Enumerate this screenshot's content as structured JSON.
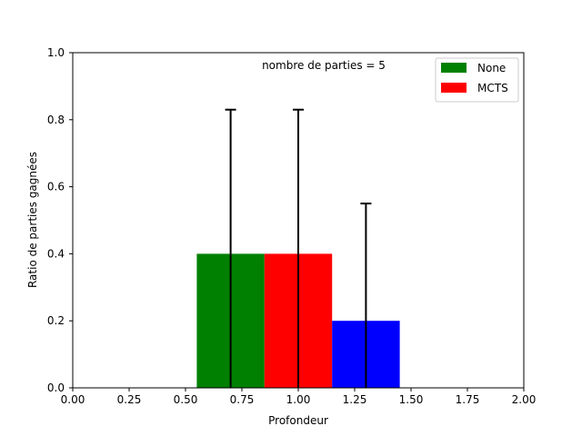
{
  "chart_data": {
    "type": "bar",
    "title": "",
    "annotation": "nombre de parties = 5",
    "xlabel": "Profondeur",
    "ylabel": "Ratio de parties gagnées",
    "xlim": [
      0.0,
      2.0
    ],
    "ylim": [
      0.0,
      1.0
    ],
    "x_ticks": [
      "0.00",
      "0.25",
      "0.50",
      "0.75",
      "1.00",
      "1.25",
      "1.50",
      "1.75",
      "2.00"
    ],
    "y_ticks": [
      "0.0",
      "0.2",
      "0.4",
      "0.6",
      "0.8",
      "1.0"
    ],
    "grid": false,
    "legend_position": "top-right",
    "legend": [
      {
        "label": "None",
        "color": "#008000"
      },
      {
        "label": "MCTS",
        "color": "#ff0000"
      }
    ],
    "bars": [
      {
        "x": 0.7,
        "width": 0.3,
        "value": 0.4,
        "error": 0.43,
        "color": "#008000"
      },
      {
        "x": 1.0,
        "width": 0.3,
        "value": 0.4,
        "error": 0.43,
        "color": "#ff0000"
      },
      {
        "x": 1.3,
        "width": 0.3,
        "value": 0.2,
        "error": 0.35,
        "color": "#0000ff"
      }
    ]
  }
}
